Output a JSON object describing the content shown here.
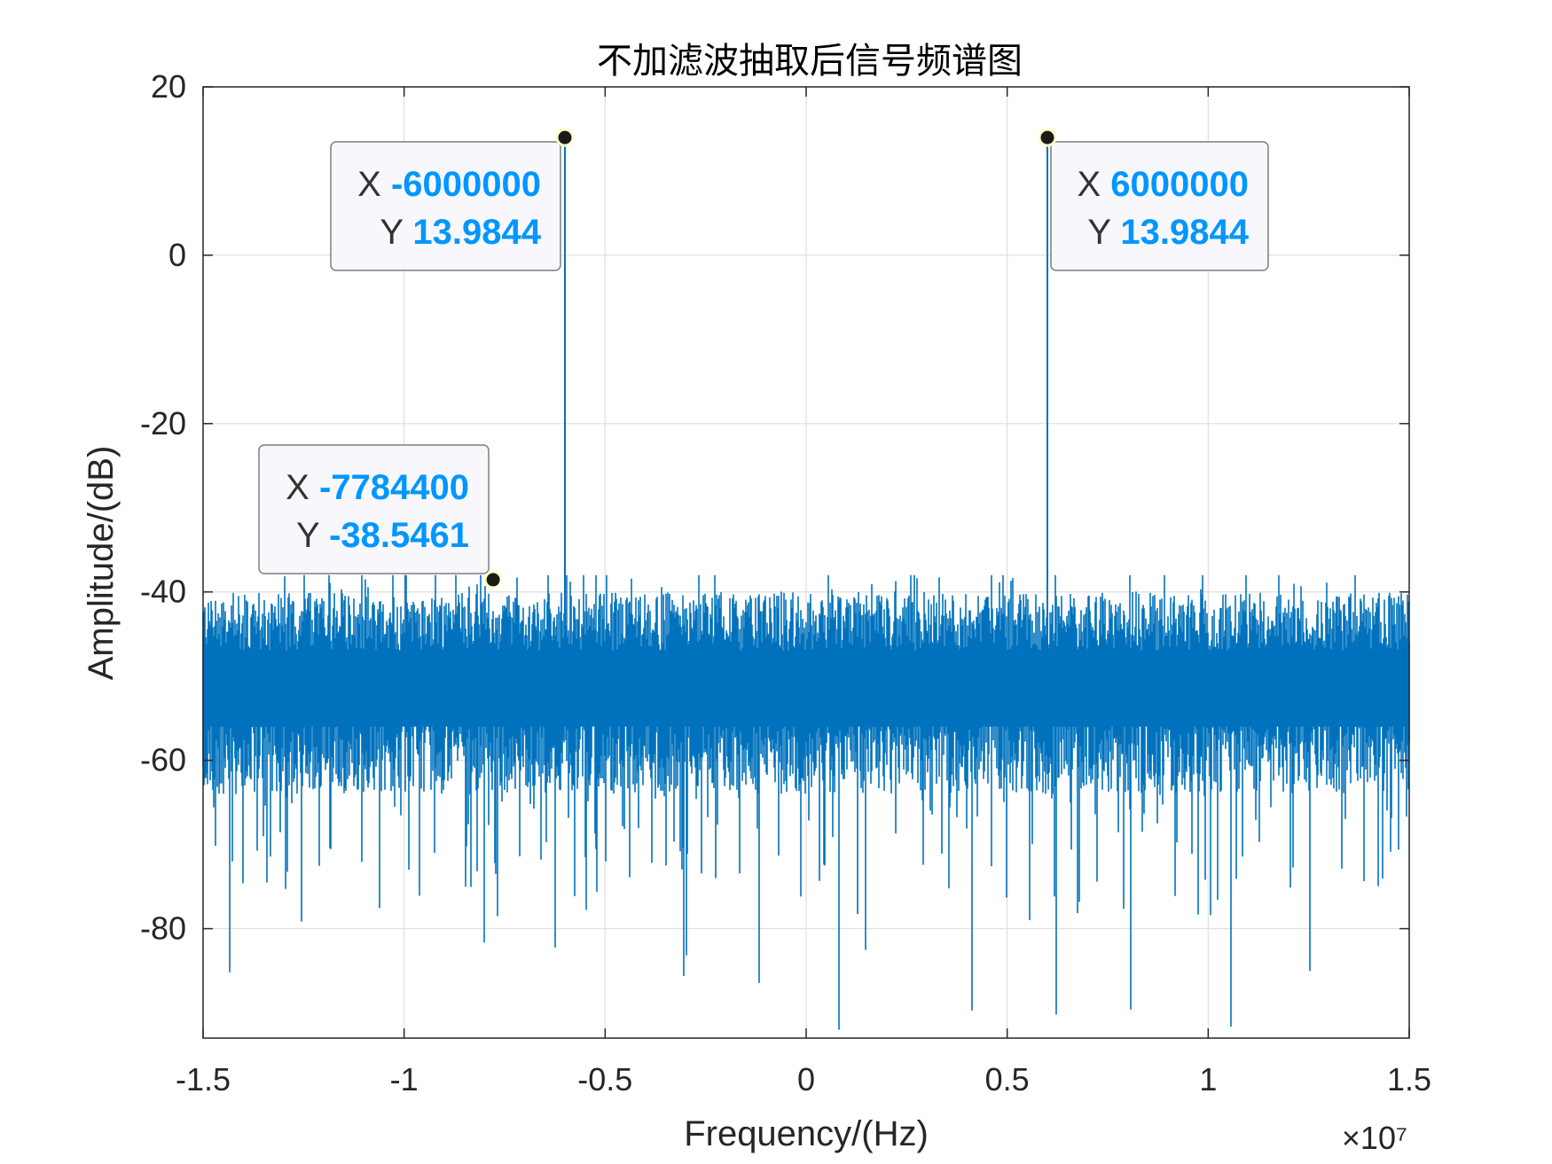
{
  "chart_data": {
    "type": "line",
    "title": "不加滤波抽取后信号频谱图",
    "xlabel": "Frequency/(Hz)",
    "ylabel": "Amplitude/(dB)",
    "x_exponent_label": "×10⁷",
    "x_scale_factor": 10000000,
    "xlim": [
      -15000000,
      15000000
    ],
    "ylim": [
      -93,
      20
    ],
    "x_ticks": [
      -1.5,
      -1,
      -0.5,
      0,
      0.5,
      1,
      1.5
    ],
    "x_tick_labels": [
      "-1.5",
      "-1",
      "-0.5",
      "0",
      "0.5",
      "1",
      "1.5"
    ],
    "y_ticks": [
      20,
      0,
      -20,
      -40,
      -60,
      -80
    ],
    "y_tick_labels": [
      "20",
      "0",
      "-20",
      "-40",
      "-60",
      "-80"
    ],
    "grid": true,
    "series": [
      {
        "color": "#0072BD",
        "noise_floor_db": -51,
        "noise_range_db": [
          -93,
          -38
        ],
        "peaks": [
          {
            "x": -6000000,
            "y": 13.9844
          },
          {
            "x": 6000000,
            "y": 13.9844
          }
        ]
      }
    ],
    "datatips": [
      {
        "x": -6000000,
        "y": 13.9844,
        "x_text": "-6000000",
        "y_text": "13.9844"
      },
      {
        "x": 6000000,
        "y": 13.9844,
        "x_text": "6000000",
        "y_text": "13.9844"
      },
      {
        "x": -7784400,
        "y": -38.5461,
        "x_text": "-7784400",
        "y_text": "-38.5461"
      }
    ],
    "datatip_labels": {
      "x": "X",
      "y": "Y"
    }
  },
  "colors": {
    "line": "#0072BD",
    "datatip_value": "#0096FF",
    "datatip_label": "#333333",
    "axes": "#262626",
    "grid": "#DFDFDF"
  }
}
